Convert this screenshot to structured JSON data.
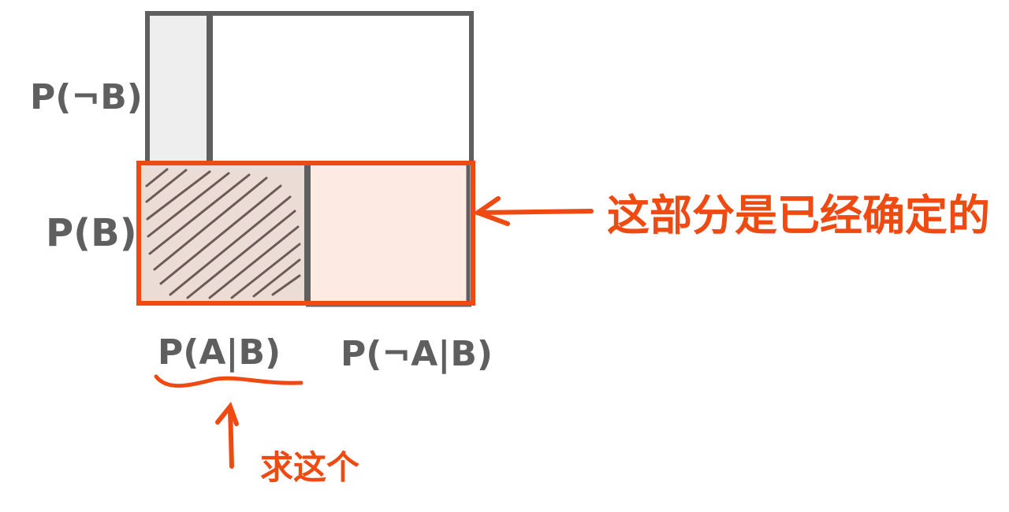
{
  "labels": {
    "p_not_b": "P(¬B)",
    "p_b": "P(B)",
    "p_a_given_b": "P(A|B)",
    "p_not_a_given_b": "P(¬A|B)"
  },
  "annotations": {
    "determined_part": "这部分是已经确定的",
    "find_this": "求这个"
  },
  "colors": {
    "outline_gray": "#5f5f5f",
    "accent_orange": "#ef4a12",
    "shaded_light_gray": "#eeeeee",
    "shaded_peach": "#fdebe3",
    "shaded_dark_peach": "#ecdcd6",
    "hatch": "#6b5a55"
  }
}
